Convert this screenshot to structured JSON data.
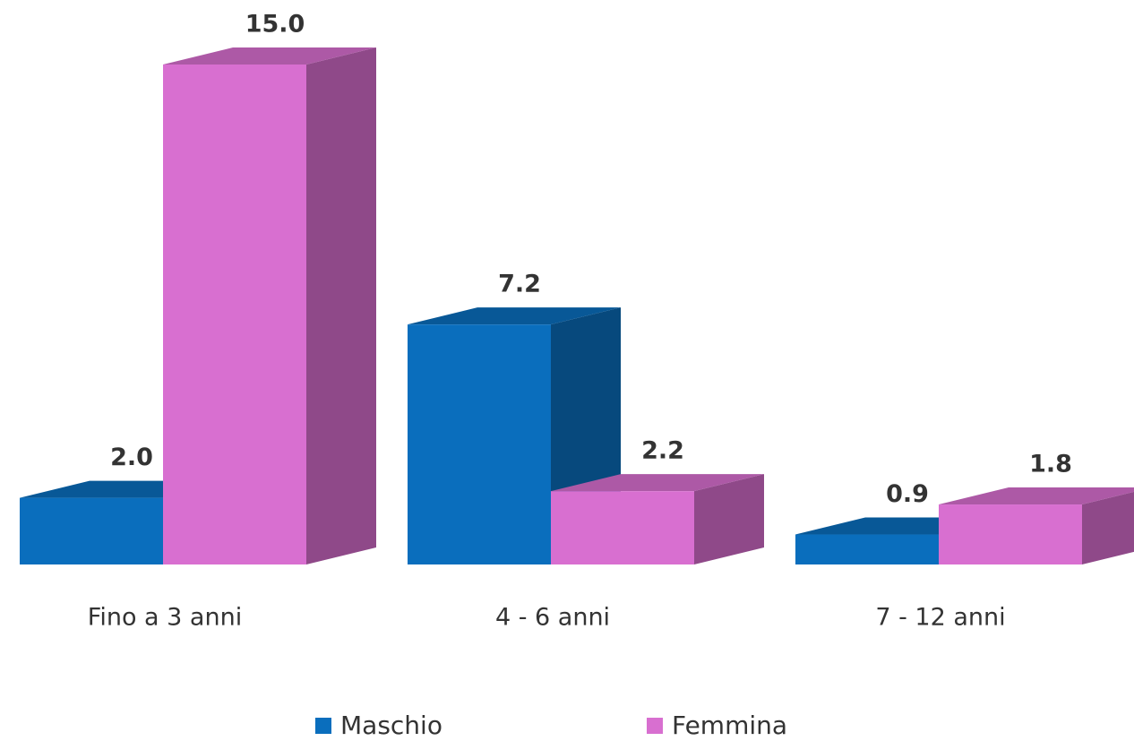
{
  "chart_data": {
    "type": "bar3d",
    "categories": [
      "Fino a 3 anni",
      "4 - 6 anni",
      "7 - 12 anni"
    ],
    "series": [
      {
        "name": "Maschio",
        "color": "#0a6ebd",
        "values": [
          2.0,
          7.2,
          0.9
        ],
        "value_labels": [
          "2.0",
          "7.2",
          "0.9"
        ]
      },
      {
        "name": "Femmina",
        "color": "#d86fd0",
        "values": [
          15.0,
          2.2,
          1.8
        ],
        "value_labels": [
          "15.0",
          "2.2",
          "1.8"
        ]
      }
    ],
    "legend": "bottom"
  }
}
